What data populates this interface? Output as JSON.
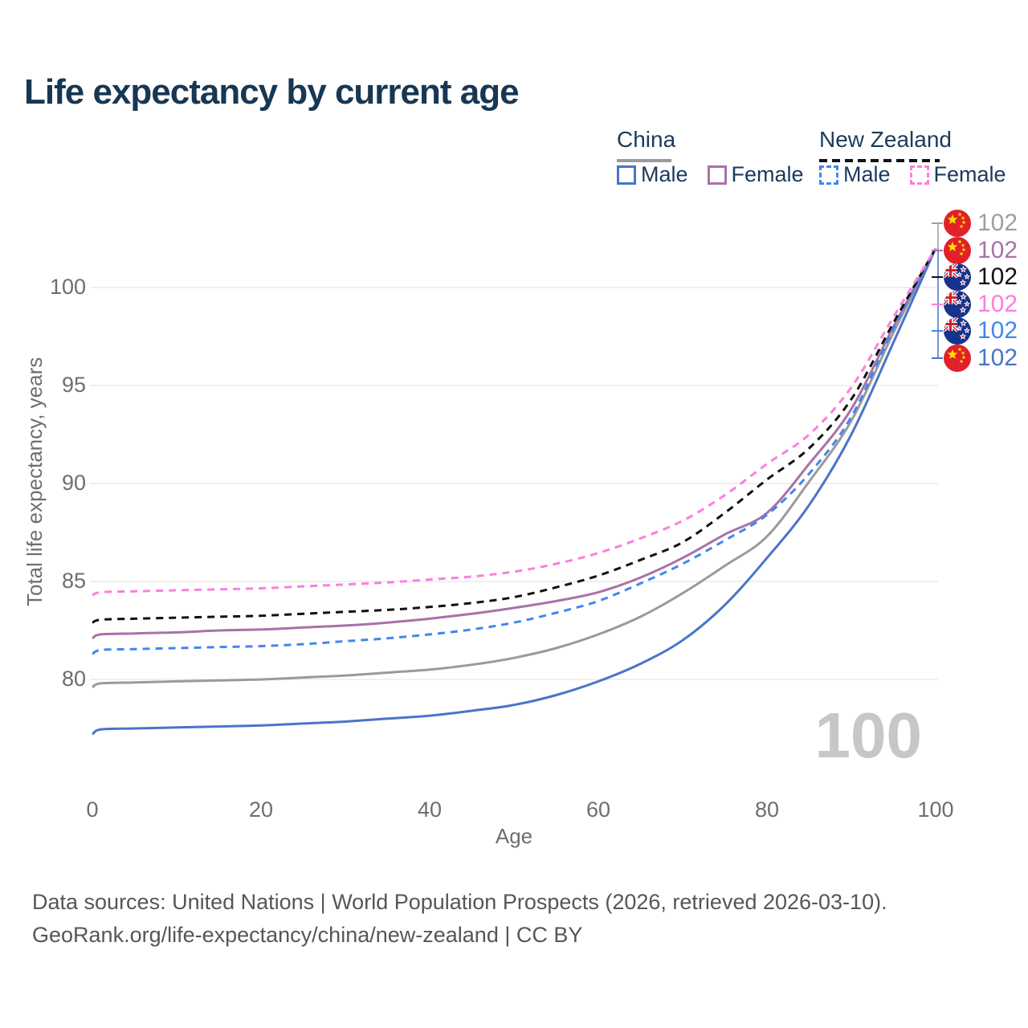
{
  "page": {
    "title": "Life expectancy by current age"
  },
  "legend": {
    "groups": [
      {
        "name": "China",
        "line_color": "#9a9a9a",
        "line_style": "solid",
        "items": [
          {
            "label": "Male",
            "color": "#4a74c8",
            "dash": false
          },
          {
            "label": "Female",
            "color": "#a872a8",
            "dash": false
          }
        ]
      },
      {
        "name": "New Zealand",
        "line_color": "#111111",
        "line_style": "dashed",
        "items": [
          {
            "label": "Male",
            "color": "#4187ee",
            "dash": true
          },
          {
            "label": "Female",
            "color": "#fc7ee0",
            "dash": true
          }
        ]
      }
    ]
  },
  "axes": {
    "y_title": "Total life expectancy, years",
    "x_title": "Age",
    "y_ticks": [
      "80",
      "85",
      "90",
      "95",
      "100"
    ],
    "x_ticks": [
      "0",
      "20",
      "40",
      "60",
      "80",
      "100"
    ]
  },
  "watermark": {
    "value": "100"
  },
  "end_labels": [
    {
      "flag": "china",
      "value": "102",
      "color": "#9e9e9e"
    },
    {
      "flag": "china",
      "value": "102",
      "color": "#a872a8"
    },
    {
      "flag": "nz",
      "value": "102",
      "color": "#111111"
    },
    {
      "flag": "nz",
      "value": "102",
      "color": "#fc7ee0"
    },
    {
      "flag": "nz",
      "value": "102",
      "color": "#4187ee"
    },
    {
      "flag": "china",
      "value": "102",
      "color": "#4a74c8"
    }
  ],
  "footer": {
    "line1": "Data sources: United Nations | World Population Prospects (2026, retrieved 2026-03-10).",
    "line2": "GeoRank.org/life-expectancy/china/new-zealand | CC BY"
  },
  "chart_data": {
    "type": "line",
    "title": "Life expectancy by current age",
    "xlabel": "Age",
    "ylabel": "Total life expectancy, years",
    "xlim": [
      0,
      100
    ],
    "ylim": [
      74.5,
      103
    ],
    "grid": "horizontal",
    "legend_position": "top-right",
    "x": [
      0,
      1,
      5,
      10,
      15,
      20,
      25,
      30,
      35,
      40,
      45,
      50,
      55,
      60,
      65,
      70,
      75,
      80,
      85,
      90,
      95,
      100
    ],
    "series": [
      {
        "name": "China Male",
        "color": "#4a74c8",
        "dash": "solid",
        "values": [
          77.2,
          77.45,
          77.5,
          77.55,
          77.6,
          77.65,
          77.75,
          77.85,
          78.0,
          78.15,
          78.4,
          78.7,
          79.2,
          79.9,
          80.8,
          82.0,
          83.8,
          86.2,
          88.9,
          92.5,
          97.2,
          102
        ]
      },
      {
        "name": "China All",
        "color": "#9a9a9a",
        "dash": "solid",
        "values": [
          79.6,
          79.8,
          79.85,
          79.9,
          79.95,
          80.0,
          80.1,
          80.2,
          80.35,
          80.5,
          80.75,
          81.1,
          81.6,
          82.3,
          83.2,
          84.4,
          85.8,
          87.3,
          90.1,
          93.2,
          97.7,
          102
        ]
      },
      {
        "name": "China Female",
        "color": "#a872a8",
        "dash": "solid",
        "values": [
          82.1,
          82.3,
          82.35,
          82.4,
          82.5,
          82.55,
          82.65,
          82.75,
          82.9,
          83.1,
          83.35,
          83.65,
          84.0,
          84.45,
          85.2,
          86.2,
          87.4,
          88.5,
          91.0,
          93.8,
          98.0,
          102
        ]
      },
      {
        "name": "New Zealand Male",
        "color": "#4187ee",
        "dash": "dashed",
        "values": [
          81.3,
          81.5,
          81.55,
          81.6,
          81.65,
          81.7,
          81.8,
          81.95,
          82.1,
          82.3,
          82.55,
          82.9,
          83.4,
          84.0,
          84.9,
          85.9,
          87.1,
          88.4,
          90.5,
          93.4,
          97.9,
          102
        ]
      },
      {
        "name": "New Zealand All",
        "color": "#111111",
        "dash": "dashed",
        "values": [
          82.9,
          83.05,
          83.1,
          83.15,
          83.2,
          83.25,
          83.35,
          83.45,
          83.55,
          83.7,
          83.9,
          84.2,
          84.7,
          85.3,
          86.1,
          87.0,
          88.5,
          90.2,
          91.8,
          94.3,
          98.2,
          102
        ]
      },
      {
        "name": "New Zealand Female",
        "color": "#fc7ee0",
        "dash": "dashed",
        "values": [
          84.3,
          84.45,
          84.5,
          84.55,
          84.6,
          84.65,
          84.75,
          84.85,
          84.95,
          85.1,
          85.25,
          85.5,
          85.9,
          86.45,
          87.2,
          88.1,
          89.4,
          91.0,
          92.5,
          94.9,
          98.5,
          102
        ]
      }
    ]
  }
}
